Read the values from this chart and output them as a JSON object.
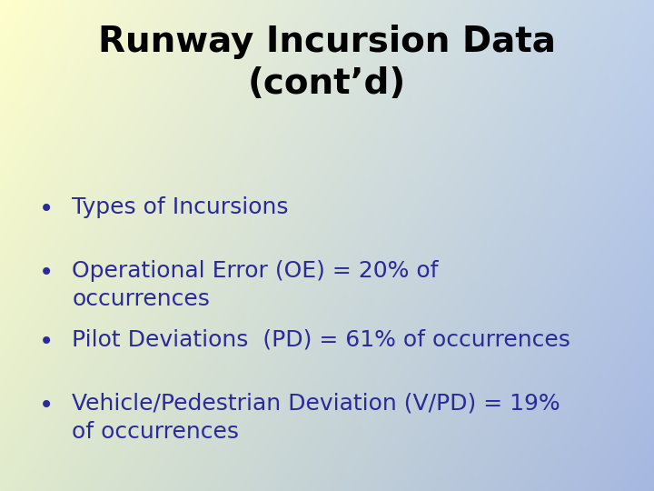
{
  "title_line1": "Runway Incursion Data",
  "title_line2": "(cont’d)",
  "bullet_points": [
    "Types of Incursions",
    "Operational Error (OE) = 20% of\noccurrences",
    "Pilot Deviations  (PD) = 61% of occurrences",
    "Vehicle/Pedestrian Deviation (V/PD) = 19%\nof occurrences"
  ],
  "title_fontsize": 28,
  "bullet_fontsize": 18,
  "title_color": "#000000",
  "bullet_color": "#2a2a99",
  "bullet_char": "•",
  "tl_color": [
    1.0,
    1.0,
    0.8
  ],
  "tr_color": [
    0.75,
    0.82,
    0.92
  ],
  "bl_color": [
    0.88,
    0.92,
    0.8
  ],
  "br_color": [
    0.65,
    0.72,
    0.88
  ],
  "fig_width": 7.2,
  "fig_height": 5.4,
  "dpi": 100
}
